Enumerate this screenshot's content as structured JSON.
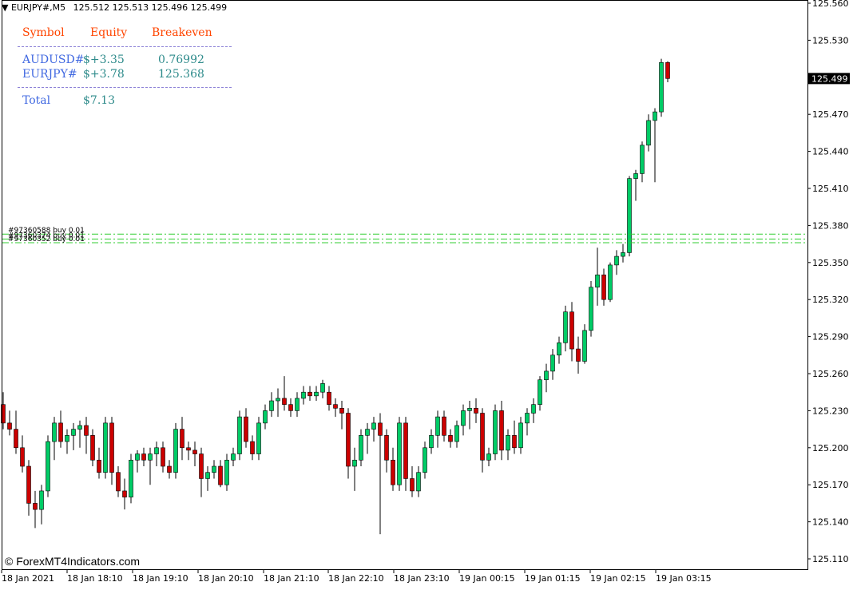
{
  "header": {
    "symbol_tf": "EURJPY#,M5",
    "ohlc": "125.512 125.513 125.496 125.499"
  },
  "equity_panel": {
    "headers": [
      "Symbol",
      "Equity",
      "Breakeven"
    ],
    "rows": [
      {
        "symbol": "AUDUSD#",
        "equity": "$+3.35",
        "breakeven": "0.76992"
      },
      {
        "symbol": "EURJPY#",
        "equity": "$+3.78",
        "breakeven": "125.368"
      }
    ],
    "total_label": "Total",
    "total_value": "$7.13"
  },
  "order_lines": [
    {
      "label": "#97360588 buy 0.01",
      "price": 125.373
    },
    {
      "label": "#97360374 buy 0.01",
      "price": 125.369
    },
    {
      "label": "#97360352 buy 0.01",
      "price": 125.366
    }
  ],
  "watermark": "© ForexMT4Indicators.com",
  "colors": {
    "bull": "#00cc66",
    "bear": "#cc0000",
    "order_line": "#32cd32",
    "panel_header": "#ff4500",
    "panel_symbol": "#4169e1",
    "panel_value": "#2e8b8b"
  },
  "chart_data": {
    "type": "candlestick",
    "title": "EURJPY#,M5",
    "ylim": [
      125.105,
      125.565
    ],
    "y_ticks": [
      "125.560",
      "125.530",
      "125.500",
      "125.470",
      "125.440",
      "125.410",
      "125.380",
      "125.350",
      "125.320",
      "125.290",
      "125.260",
      "125.230",
      "125.200",
      "125.170",
      "125.140",
      "125.110"
    ],
    "x_ticks": [
      "18 Jan 2021",
      "18 Jan 18:10",
      "18 Jan 19:10",
      "18 Jan 20:10",
      "18 Jan 21:10",
      "18 Jan 22:10",
      "18 Jan 23:10",
      "19 Jan 00:15",
      "19 Jan 01:15",
      "19 Jan 02:15",
      "19 Jan 03:15"
    ],
    "current_price": "125.499",
    "grid": false,
    "candles": [
      [
        125.235,
        125.245,
        125.215,
        125.22
      ],
      [
        125.22,
        125.23,
        125.21,
        125.215
      ],
      [
        125.215,
        125.23,
        125.195,
        125.2
      ],
      [
        125.2,
        125.21,
        125.18,
        125.185
      ],
      [
        125.185,
        125.19,
        125.145,
        125.155
      ],
      [
        125.155,
        125.165,
        125.135,
        125.15
      ],
      [
        125.15,
        125.17,
        125.138,
        125.165
      ],
      [
        125.165,
        125.21,
        125.16,
        125.205
      ],
      [
        125.205,
        125.225,
        125.19,
        125.22
      ],
      [
        125.22,
        125.23,
        125.2,
        125.205
      ],
      [
        125.205,
        125.215,
        125.195,
        125.21
      ],
      [
        125.21,
        125.22,
        125.198,
        125.215
      ],
      [
        125.215,
        125.222,
        125.2,
        125.218
      ],
      [
        125.218,
        125.225,
        125.195,
        125.21
      ],
      [
        125.21,
        125.215,
        125.185,
        125.19
      ],
      [
        125.19,
        125.2,
        125.175,
        125.18
      ],
      [
        125.18,
        125.225,
        125.175,
        125.22
      ],
      [
        125.22,
        125.225,
        125.17,
        125.18
      ],
      [
        125.18,
        125.185,
        125.16,
        125.165
      ],
      [
        125.165,
        125.175,
        125.15,
        125.16
      ],
      [
        125.16,
        125.195,
        125.155,
        125.19
      ],
      [
        125.19,
        125.198,
        125.18,
        125.195
      ],
      [
        125.195,
        125.2,
        125.185,
        125.19
      ],
      [
        125.19,
        125.2,
        125.17,
        125.195
      ],
      [
        125.195,
        125.205,
        125.185,
        125.2
      ],
      [
        125.2,
        125.205,
        125.18,
        125.185
      ],
      [
        125.185,
        125.19,
        125.175,
        125.18
      ],
      [
        125.18,
        125.22,
        125.175,
        125.215
      ],
      [
        125.215,
        125.225,
        125.19,
        125.2
      ],
      [
        125.2,
        125.205,
        125.19,
        125.198
      ],
      [
        125.198,
        125.205,
        125.185,
        125.195
      ],
      [
        125.195,
        125.2,
        125.16,
        125.175
      ],
      [
        125.175,
        125.185,
        125.165,
        125.18
      ],
      [
        125.18,
        125.19,
        125.175,
        125.185
      ],
      [
        125.185,
        125.19,
        125.168,
        125.17
      ],
      [
        125.17,
        125.195,
        125.165,
        125.19
      ],
      [
        125.19,
        125.2,
        125.185,
        125.195
      ],
      [
        125.195,
        125.23,
        125.19,
        125.225
      ],
      [
        125.225,
        125.232,
        125.2,
        125.205
      ],
      [
        125.205,
        125.21,
        125.19,
        125.195
      ],
      [
        125.195,
        125.225,
        125.19,
        125.22
      ],
      [
        125.22,
        125.235,
        125.215,
        125.23
      ],
      [
        125.23,
        125.245,
        125.225,
        125.238
      ],
      [
        125.238,
        125.248,
        125.225,
        125.24
      ],
      [
        125.24,
        125.258,
        125.23,
        125.235
      ],
      [
        125.235,
        125.24,
        125.225,
        125.23
      ],
      [
        125.23,
        125.245,
        125.225,
        125.24
      ],
      [
        125.24,
        125.25,
        125.235,
        125.245
      ],
      [
        125.245,
        125.25,
        125.238,
        125.242
      ],
      [
        125.242,
        125.25,
        125.238,
        125.245
      ],
      [
        125.245,
        125.255,
        125.24,
        125.252
      ],
      [
        125.245,
        125.25,
        125.23,
        125.235
      ],
      [
        125.235,
        125.24,
        125.225,
        125.232
      ],
      [
        125.232,
        125.238,
        125.215,
        125.228
      ],
      [
        125.228,
        125.232,
        125.175,
        125.185
      ],
      [
        125.185,
        125.2,
        125.165,
        125.19
      ],
      [
        125.19,
        125.215,
        125.185,
        125.21
      ],
      [
        125.21,
        125.22,
        125.195,
        125.215
      ],
      [
        125.215,
        125.225,
        125.205,
        125.22
      ],
      [
        125.22,
        125.228,
        125.13,
        125.21
      ],
      [
        125.21,
        125.215,
        125.18,
        125.19
      ],
      [
        125.19,
        125.2,
        125.165,
        125.17
      ],
      [
        125.17,
        125.225,
        125.165,
        125.22
      ],
      [
        125.22,
        125.225,
        125.165,
        125.175
      ],
      [
        125.175,
        125.185,
        125.16,
        125.165
      ],
      [
        125.165,
        125.185,
        125.16,
        125.18
      ],
      [
        125.18,
        125.205,
        125.175,
        125.2
      ],
      [
        125.2,
        125.215,
        125.195,
        125.21
      ],
      [
        125.21,
        125.23,
        125.2,
        125.225
      ],
      [
        125.225,
        125.23,
        125.205,
        125.21
      ],
      [
        125.21,
        125.215,
        125.2,
        125.205
      ],
      [
        125.205,
        125.222,
        125.2,
        125.218
      ],
      [
        125.218,
        125.235,
        125.21,
        125.23
      ],
      [
        125.23,
        125.238,
        125.215,
        125.232
      ],
      [
        125.232,
        125.24,
        125.22,
        125.228
      ],
      [
        125.228,
        125.232,
        125.18,
        125.19
      ],
      [
        125.19,
        125.2,
        125.185,
        125.195
      ],
      [
        125.195,
        125.235,
        125.19,
        125.23
      ],
      [
        125.23,
        125.238,
        125.19,
        125.198
      ],
      [
        125.198,
        125.215,
        125.19,
        125.21
      ],
      [
        125.21,
        125.222,
        125.195,
        125.2
      ],
      [
        125.2,
        125.225,
        125.195,
        125.22
      ],
      [
        125.22,
        125.232,
        125.21,
        125.228
      ],
      [
        125.228,
        125.24,
        125.22,
        125.235
      ],
      [
        125.235,
        125.258,
        125.23,
        125.255
      ],
      [
        125.255,
        125.268,
        125.245,
        125.262
      ],
      [
        125.262,
        125.28,
        125.255,
        125.275
      ],
      [
        125.275,
        125.29,
        125.268,
        125.285
      ],
      [
        125.285,
        125.315,
        125.278,
        125.31
      ],
      [
        125.31,
        125.318,
        125.27,
        125.28
      ],
      [
        125.28,
        125.29,
        125.26,
        125.27
      ],
      [
        125.27,
        125.3,
        125.268,
        125.295
      ],
      [
        125.295,
        125.335,
        125.29,
        125.33
      ],
      [
        125.33,
        125.362,
        125.315,
        125.34
      ],
      [
        125.34,
        125.345,
        125.315,
        125.32
      ],
      [
        125.32,
        125.35,
        125.318,
        125.348
      ],
      [
        125.348,
        125.36,
        125.34,
        125.355
      ],
      [
        125.355,
        125.365,
        125.35,
        125.358
      ],
      [
        125.358,
        125.42,
        125.355,
        125.418
      ],
      [
        125.418,
        125.425,
        125.4,
        125.422
      ],
      [
        125.422,
        125.448,
        125.415,
        125.445
      ],
      [
        125.445,
        125.47,
        125.44,
        125.465
      ],
      [
        125.465,
        125.475,
        125.415,
        125.472
      ],
      [
        125.472,
        125.515,
        125.468,
        125.512
      ],
      [
        125.512,
        125.513,
        125.496,
        125.499
      ]
    ]
  }
}
